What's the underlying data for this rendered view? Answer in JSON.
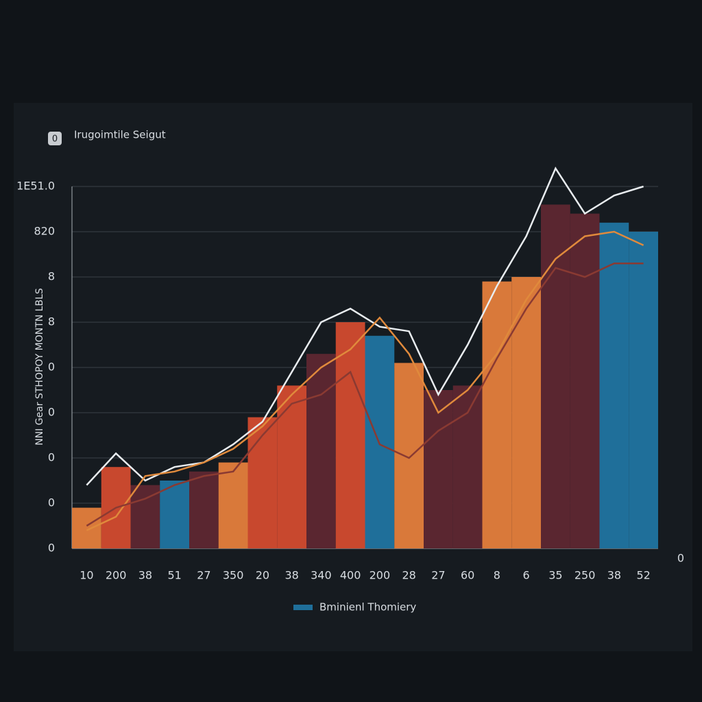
{
  "icon_label": "0",
  "chart_data": {
    "type": "bar",
    "title": "Irugoimtile Seigut",
    "y_label": "NNI Gear STHOPOY MONTN LBLS",
    "x_axis_end_label": "0",
    "categories": [
      "10",
      "200",
      "38",
      "51",
      "27",
      "350",
      "20",
      "38",
      "340",
      "400",
      "200",
      "28",
      "27",
      "60",
      "8",
      "6",
      "35",
      "250",
      "38",
      "52"
    ],
    "ylim": [
      0,
      8
    ],
    "yticks": [
      {
        "value": 0,
        "label": "0"
      },
      {
        "value": 1,
        "label": "0"
      },
      {
        "value": 2,
        "label": "0"
      },
      {
        "value": 3,
        "label": "0"
      },
      {
        "value": 4,
        "label": "0"
      },
      {
        "value": 5,
        "label": "8"
      },
      {
        "value": 6,
        "label": "8"
      },
      {
        "value": 7,
        "label": "820"
      },
      {
        "value": 8,
        "label": "1E51.0"
      }
    ],
    "grid": true,
    "series": [
      {
        "name": "Bminienl Thomiery",
        "color": "#1f6f9a",
        "colors": [
          "#d9793a",
          "#c8482e",
          "#5a2630",
          "#1f6f9a",
          "#5a2630",
          "#d9793a",
          "#c8482e",
          "#c8482e",
          "#5a2630",
          "#c8482e",
          "#1f6f9a",
          "#d9793a",
          "#5a2630",
          "#5a2630",
          "#d9793a",
          "#d9793a",
          "#5a2630",
          "#5a2630",
          "#1f6f9a",
          "#1f6f9a"
        ],
        "values": [
          0.9,
          1.8,
          1.4,
          1.5,
          1.7,
          1.9,
          2.9,
          3.6,
          4.3,
          5.0,
          4.7,
          4.1,
          3.5,
          3.6,
          5.9,
          6.0,
          7.6,
          7.4,
          7.2,
          7.0
        ]
      },
      {
        "type": "line",
        "color": "#e8ecef",
        "values": [
          1.4,
          2.1,
          1.5,
          1.8,
          1.9,
          2.3,
          2.8,
          3.9,
          5.0,
          5.3,
          4.9,
          4.8,
          3.4,
          4.5,
          5.8,
          6.9,
          8.4,
          7.4,
          7.8,
          8.0
        ]
      },
      {
        "type": "line",
        "color": "#e08a3c",
        "values": [
          0.4,
          0.7,
          1.6,
          1.7,
          1.9,
          2.2,
          2.7,
          3.4,
          4.0,
          4.4,
          5.1,
          4.3,
          3.0,
          3.5,
          4.3,
          5.5,
          6.4,
          6.9,
          7.0,
          6.7
        ]
      },
      {
        "type": "line",
        "color": "#8a3a32",
        "values": [
          0.5,
          0.9,
          1.1,
          1.4,
          1.6,
          1.7,
          2.5,
          3.2,
          3.4,
          3.9,
          2.3,
          2.0,
          2.6,
          3.0,
          4.2,
          5.3,
          6.2,
          6.0,
          6.3,
          6.3
        ]
      }
    ],
    "legend": "bottom"
  }
}
